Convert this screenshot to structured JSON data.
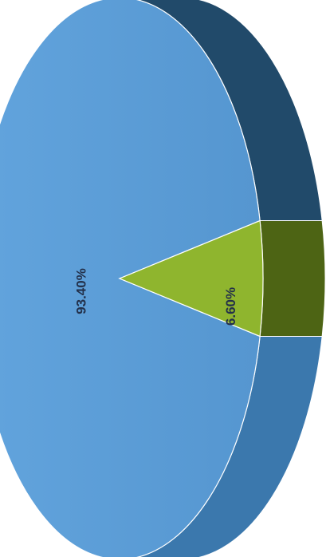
{
  "chart_data": {
    "type": "pie",
    "title": "",
    "slices": [
      {
        "label": "93.40%",
        "value": 93.4,
        "color": "#5b9bd5",
        "side_color": "#214a6a"
      },
      {
        "label": "6.60%",
        "value": 6.6,
        "color": "#8fb52e",
        "side_color": "#4d6414"
      }
    ]
  }
}
